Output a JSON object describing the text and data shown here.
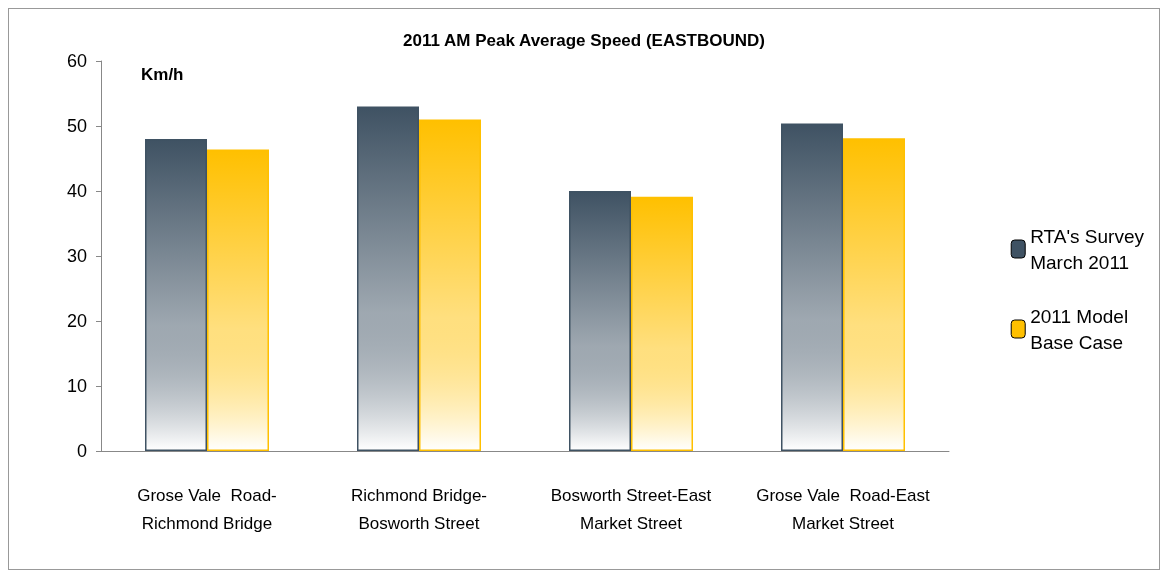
{
  "chart_data": {
    "type": "bar",
    "title": "2011 AM Peak Average Speed (EASTBOUND)",
    "ylabel": "Km/h",
    "categories": [
      "Grose Vale  Road-\nRichmond Bridge",
      "Richmond Bridge-\nBosworth Street",
      "Bosworth Street-East\nMarket Street",
      "Grose Vale  Road-East\nMarket Street"
    ],
    "series": [
      {
        "name": "RTA's Survey\nMarch 2011",
        "color": "#3f5263",
        "values": [
          48,
          53,
          40,
          50.4
        ]
      },
      {
        "name": "2011 Model\nBase Case",
        "color": "#ffc000",
        "values": [
          46.4,
          51,
          39.1,
          48.1
        ]
      }
    ],
    "ylim": [
      0,
      60
    ],
    "yticks": [
      0,
      10,
      20,
      30,
      40,
      50,
      60
    ],
    "grid": false,
    "legend": "right"
  }
}
